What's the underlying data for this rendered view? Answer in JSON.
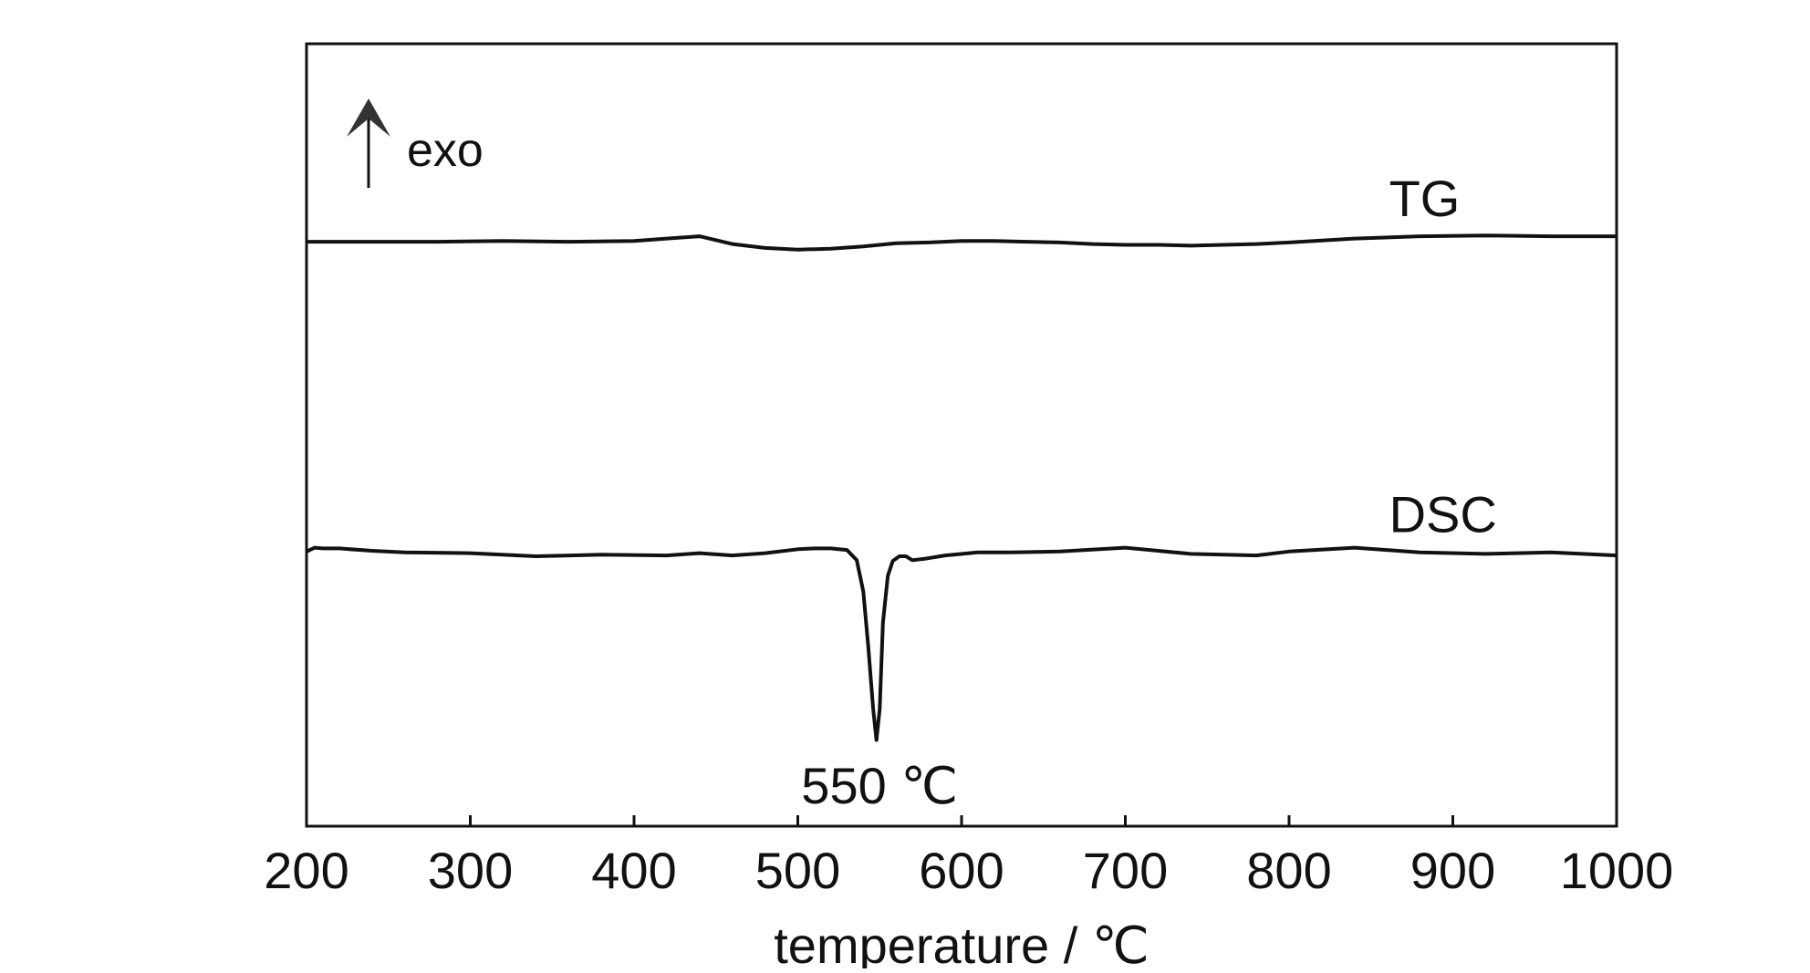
{
  "chart_data": {
    "type": "line",
    "xlabel": "temperature / ℃",
    "ylabel": "",
    "xlim": [
      200,
      1000
    ],
    "ylim": [
      0,
      1
    ],
    "xticks": [
      "200",
      "300",
      "400",
      "500",
      "600",
      "700",
      "800",
      "900",
      "1000"
    ],
    "grid": false,
    "exo_label": "exo",
    "series": [
      {
        "name": "TG",
        "x": [
          200,
          240,
          280,
          320,
          360,
          400,
          420,
          440,
          460,
          480,
          500,
          520,
          540,
          560,
          580,
          600,
          620,
          640,
          660,
          680,
          700,
          720,
          740,
          760,
          780,
          800,
          840,
          880,
          920,
          960,
          1000
        ],
        "values": [
          0.747,
          0.747,
          0.747,
          0.748,
          0.747,
          0.748,
          0.751,
          0.754,
          0.744,
          0.739,
          0.737,
          0.738,
          0.741,
          0.745,
          0.746,
          0.748,
          0.748,
          0.747,
          0.746,
          0.744,
          0.743,
          0.743,
          0.742,
          0.743,
          0.744,
          0.746,
          0.751,
          0.754,
          0.755,
          0.754,
          0.754
        ]
      },
      {
        "name": "DSC",
        "x": [
          200,
          205,
          210,
          220,
          240,
          260,
          300,
          340,
          380,
          420,
          440,
          460,
          480,
          500,
          510,
          520,
          530,
          536,
          540,
          543,
          546,
          548,
          550,
          552,
          555,
          558,
          562,
          566,
          570,
          578,
          590,
          610,
          630,
          660,
          700,
          740,
          780,
          800,
          840,
          880,
          920,
          960,
          1000
        ],
        "values": [
          0.351,
          0.356,
          0.355,
          0.355,
          0.352,
          0.35,
          0.349,
          0.345,
          0.347,
          0.346,
          0.349,
          0.346,
          0.349,
          0.354,
          0.355,
          0.355,
          0.353,
          0.34,
          0.3,
          0.23,
          0.15,
          0.11,
          0.15,
          0.26,
          0.32,
          0.339,
          0.345,
          0.345,
          0.34,
          0.342,
          0.346,
          0.35,
          0.35,
          0.351,
          0.356,
          0.348,
          0.346,
          0.351,
          0.356,
          0.35,
          0.348,
          0.35,
          0.346
        ]
      }
    ],
    "annotations": [
      {
        "text": "550 ℃",
        "x": 550,
        "y": 0.05
      }
    ]
  }
}
